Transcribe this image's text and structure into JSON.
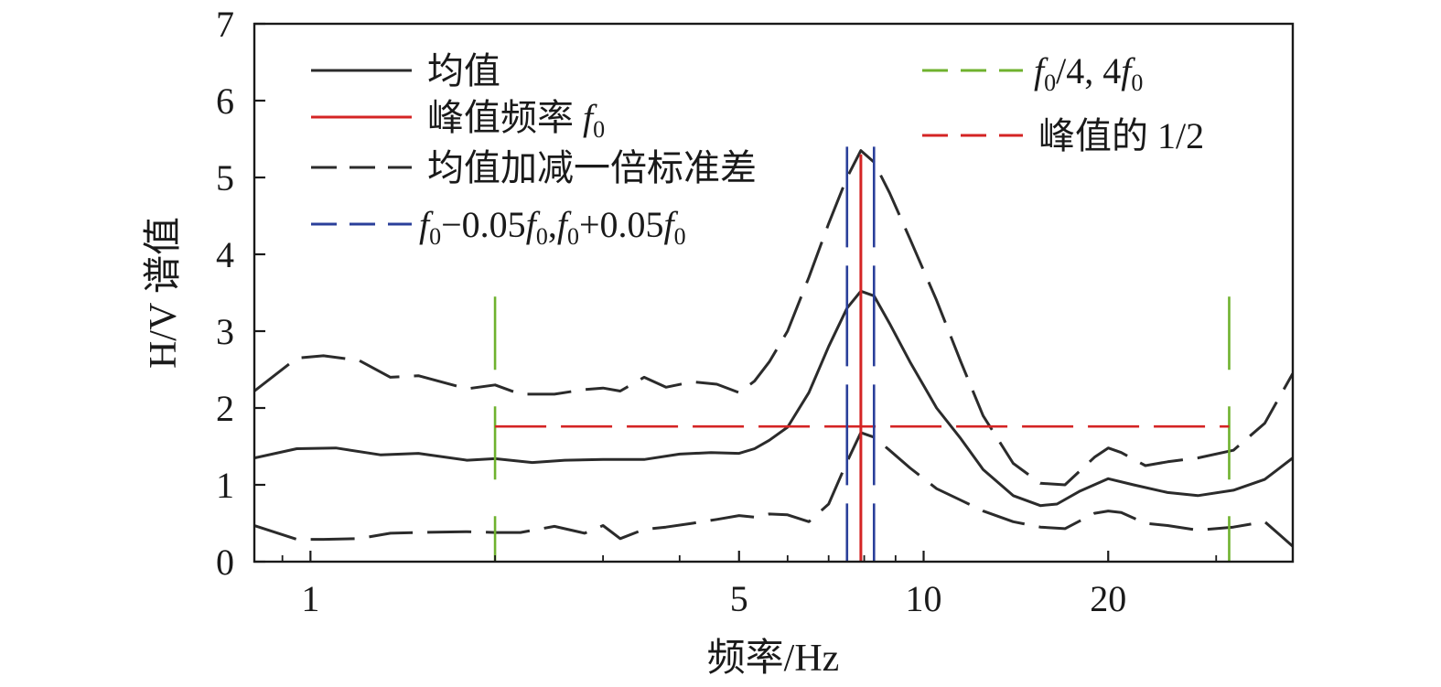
{
  "chart_data": {
    "type": "line",
    "xlabel": "频率/Hz",
    "ylabel": "H/V 谱值",
    "x_scale": "log",
    "xlim": [
      0.81,
      40
    ],
    "ylim": [
      0,
      7
    ],
    "x_tick_labels": [
      "1",
      "5",
      "10",
      "20"
    ],
    "x_ticks": [
      1,
      5,
      10,
      20
    ],
    "y_tick_labels": [
      "0",
      "1",
      "2",
      "3",
      "4",
      "5",
      "6",
      "7"
    ],
    "y_ticks": [
      0,
      1,
      2,
      3,
      4,
      5,
      6,
      7
    ],
    "grid": false,
    "legend_placement": "top",
    "colors": {
      "mean": "#2b2b2b",
      "peak_freq": "#d42424",
      "std_band": "#2b2b2b",
      "f0_band": "#2a3f9a",
      "f0_quarter": "#6fb22e",
      "half_peak": "#d42424"
    },
    "legend": {
      "mean": "均值",
      "peak": "峰值频率 ",
      "std": "均值加减一倍标准差",
      "f0_band_prefix": "−0.05",
      "f0_band_mid": "+0.05",
      "quarter_mid": "/4, 4",
      "half": "峰值的 1/2",
      "f_symbol": "f",
      "f_sub": "0"
    },
    "peak_frequency": 7.9,
    "f0_band": [
      7.5,
      8.3
    ],
    "f0_quarter_lines": [
      2.0,
      31.5
    ],
    "half_peak_value": 1.76,
    "series": {
      "mean": {
        "x": [
          0.81,
          0.95,
          1.1,
          1.3,
          1.5,
          1.8,
          2.0,
          2.3,
          2.6,
          3.0,
          3.5,
          4.0,
          4.5,
          5.0,
          5.3,
          5.6,
          6.0,
          6.5,
          7.0,
          7.5,
          7.9,
          8.3,
          8.8,
          9.5,
          10.5,
          11.5,
          12.5,
          14.0,
          15.5,
          16.5,
          18.0,
          20.0,
          22.0,
          25.0,
          28.0,
          32.0,
          36.0,
          40.0
        ],
        "y": [
          1.35,
          1.47,
          1.48,
          1.39,
          1.41,
          1.32,
          1.34,
          1.29,
          1.32,
          1.33,
          1.33,
          1.4,
          1.42,
          1.41,
          1.47,
          1.58,
          1.75,
          2.2,
          2.8,
          3.3,
          3.52,
          3.46,
          3.1,
          2.6,
          2.0,
          1.6,
          1.2,
          0.86,
          0.73,
          0.75,
          0.92,
          1.08,
          1.0,
          0.9,
          0.86,
          0.93,
          1.07,
          1.35
        ]
      },
      "upper": {
        "x": [
          0.81,
          0.95,
          1.05,
          1.2,
          1.35,
          1.5,
          1.8,
          2.0,
          2.2,
          2.5,
          2.8,
          3.0,
          3.2,
          3.5,
          3.8,
          4.2,
          4.6,
          5.0,
          5.3,
          5.6,
          6.0,
          6.5,
          7.0,
          7.5,
          7.9,
          8.3,
          8.8,
          9.5,
          10.5,
          11.5,
          12.5,
          14.0,
          15.5,
          17.0,
          19.0,
          20.0,
          21.0,
          23.0,
          25.0,
          28.0,
          32.0,
          36.0,
          40.0
        ],
        "y": [
          2.22,
          2.65,
          2.68,
          2.62,
          2.4,
          2.42,
          2.25,
          2.3,
          2.18,
          2.18,
          2.24,
          2.26,
          2.22,
          2.4,
          2.27,
          2.34,
          2.31,
          2.2,
          2.35,
          2.6,
          3.0,
          3.7,
          4.4,
          5.0,
          5.35,
          5.2,
          4.8,
          4.2,
          3.4,
          2.6,
          1.9,
          1.28,
          1.02,
          1.0,
          1.36,
          1.48,
          1.42,
          1.25,
          1.3,
          1.35,
          1.45,
          1.8,
          2.45
        ]
      },
      "lower": {
        "x": [
          0.81,
          0.95,
          1.05,
          1.2,
          1.35,
          1.5,
          1.8,
          2.0,
          2.2,
          2.5,
          2.8,
          3.0,
          3.2,
          3.5,
          3.8,
          4.2,
          4.6,
          5.0,
          5.3,
          5.6,
          6.0,
          6.5,
          7.0,
          7.5,
          7.9,
          8.3,
          8.8,
          9.5,
          10.5,
          11.5,
          12.5,
          14.0,
          15.5,
          17.0,
          19.0,
          20.0,
          21.0,
          23.0,
          25.0,
          28.0,
          32.0,
          36.0,
          40.0
        ],
        "y": [
          0.47,
          0.29,
          0.29,
          0.3,
          0.37,
          0.38,
          0.39,
          0.38,
          0.38,
          0.46,
          0.37,
          0.47,
          0.3,
          0.42,
          0.45,
          0.5,
          0.55,
          0.6,
          0.58,
          0.62,
          0.61,
          0.52,
          0.75,
          1.3,
          1.68,
          1.62,
          1.45,
          1.22,
          0.95,
          0.8,
          0.66,
          0.52,
          0.45,
          0.43,
          0.63,
          0.66,
          0.64,
          0.5,
          0.47,
          0.41,
          0.45,
          0.52,
          0.2
        ]
      }
    }
  }
}
